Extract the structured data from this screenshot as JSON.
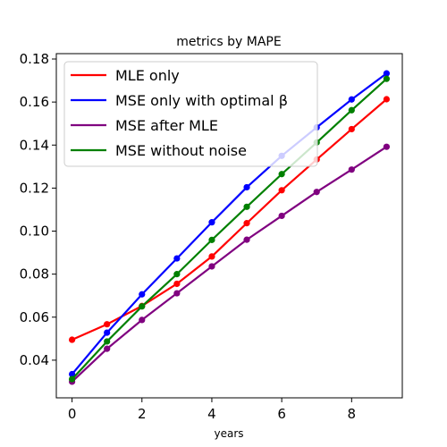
{
  "chart_data": {
    "type": "line",
    "title": "metrics by MAPE",
    "xlabel": "years",
    "ylabel": "",
    "xlim": [
      -0.45,
      9.45
    ],
    "ylim": [
      0.0225,
      0.1825
    ],
    "xticks": [
      0,
      2,
      4,
      6,
      8
    ],
    "yticks": [
      0.04,
      0.06,
      0.08,
      0.1,
      0.12,
      0.14,
      0.16,
      0.18
    ],
    "ytick_labels": [
      "0.04",
      "0.06",
      "0.08",
      "0.10",
      "0.12",
      "0.14",
      "0.16",
      "0.18"
    ],
    "xtick_labels": [
      "0",
      "2",
      "4",
      "6",
      "8"
    ],
    "grid": false,
    "legend_position": "top-left",
    "x": [
      0,
      1,
      2,
      3,
      4,
      5,
      6,
      7,
      8,
      9
    ],
    "series": [
      {
        "name": "MLE only",
        "color": "#ff0000",
        "values": [
          0.0495,
          0.0567,
          0.0652,
          0.0755,
          0.0882,
          0.1037,
          0.119,
          0.1333,
          0.1474,
          0.1613
        ]
      },
      {
        "name": "MSE only with optimal β",
        "color": "#0000ff",
        "values": [
          0.0335,
          0.0528,
          0.0706,
          0.0873,
          0.1041,
          0.1204,
          0.135,
          0.1482,
          0.1612,
          0.1733
        ]
      },
      {
        "name": "MSE after MLE",
        "color": "#800080",
        "values": [
          0.03,
          0.0453,
          0.0587,
          0.0711,
          0.0836,
          0.096,
          0.1071,
          0.1182,
          0.1286,
          0.1392
        ]
      },
      {
        "name": "MSE without noise",
        "color": "#008000",
        "values": [
          0.0312,
          0.0487,
          0.065,
          0.08,
          0.0959,
          0.1113,
          0.1265,
          0.1412,
          0.1562,
          0.1708
        ]
      }
    ]
  }
}
